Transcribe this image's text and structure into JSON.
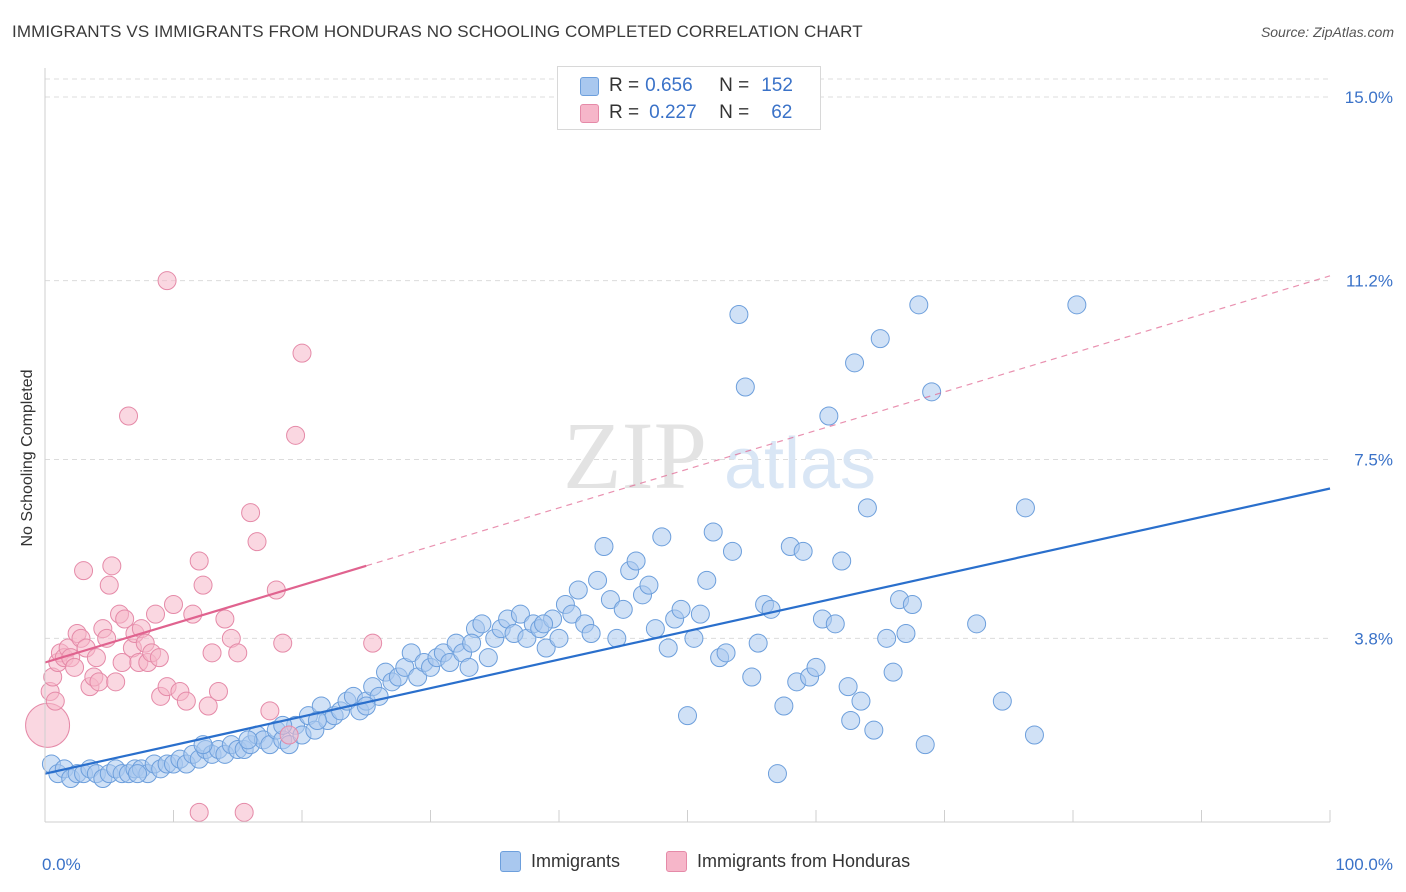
{
  "title": "IMMIGRANTS VS IMMIGRANTS FROM HONDURAS NO SCHOOLING COMPLETED CORRELATION CHART",
  "source": "Source: ZipAtlas.com",
  "watermark": {
    "zip": "ZIP",
    "atlas": "atlas"
  },
  "colors": {
    "blue_fill": "#a9c8ef",
    "blue_stroke": "#6d9fdc",
    "blue_line": "#2a6fcc",
    "pink_fill": "#f6b6c9",
    "pink_stroke": "#e58aa8",
    "pink_line": "#e0638f",
    "axis_text": "#3a72c8",
    "grid": "#dcdcdc"
  },
  "legend_top": {
    "rows": [
      {
        "r_label": "R =",
        "r_value": "0.656",
        "n_label": "N =",
        "n_value": "152",
        "color": "blue"
      },
      {
        "r_label": "R =",
        "r_value": "0.227",
        "n_label": "N =",
        "n_value": "62",
        "color": "pink"
      }
    ]
  },
  "legend_bottom": [
    {
      "label": "Immigrants",
      "color": "blue"
    },
    {
      "label": "Immigrants from Honduras",
      "color": "pink"
    }
  ],
  "chart_data": {
    "type": "scatter",
    "xlabel": "",
    "ylabel": "No Schooling Completed",
    "xlim": [
      0,
      100
    ],
    "ylim": [
      0,
      15.5
    ],
    "x_tick_labels": [
      {
        "value": 0,
        "label": "0.0%"
      },
      {
        "value": 100,
        "label": "100.0%"
      }
    ],
    "y_ticks": [
      {
        "value": 3.8,
        "label": "3.8%"
      },
      {
        "value": 7.5,
        "label": "7.5%"
      },
      {
        "value": 11.2,
        "label": "11.2%"
      },
      {
        "value": 15.0,
        "label": "15.0%"
      }
    ],
    "x_minor_ticks": [
      0,
      10,
      20,
      30,
      40,
      50,
      60,
      70,
      80,
      90,
      100
    ],
    "grid": true,
    "legend_position": "top-center",
    "series": [
      {
        "name": "Immigrants",
        "color": "blue",
        "r": 0.656,
        "n": 152,
        "trend": {
          "x": [
            0,
            100
          ],
          "y": [
            1.0,
            6.9
          ],
          "style": "solid"
        },
        "points": [
          [
            0.5,
            1.2
          ],
          [
            1,
            1.0
          ],
          [
            1.5,
            1.1
          ],
          [
            2,
            0.9
          ],
          [
            2.5,
            1.0
          ],
          [
            3,
            1.0
          ],
          [
            3.5,
            1.1
          ],
          [
            4,
            1.0
          ],
          [
            4.5,
            0.9
          ],
          [
            5,
            1.0
          ],
          [
            5.5,
            1.1
          ],
          [
            6,
            1.0
          ],
          [
            6.5,
            1.0
          ],
          [
            7,
            1.1
          ],
          [
            7.5,
            1.1
          ],
          [
            8,
            1.0
          ],
          [
            8.5,
            1.2
          ],
          [
            9,
            1.1
          ],
          [
            9.5,
            1.2
          ],
          [
            10,
            1.2
          ],
          [
            10.5,
            1.3
          ],
          [
            11,
            1.2
          ],
          [
            11.5,
            1.4
          ],
          [
            12,
            1.3
          ],
          [
            12.5,
            1.5
          ],
          [
            13,
            1.4
          ],
          [
            13.5,
            1.5
          ],
          [
            14,
            1.4
          ],
          [
            14.5,
            1.6
          ],
          [
            15,
            1.5
          ],
          [
            15.5,
            1.5
          ],
          [
            16,
            1.6
          ],
          [
            16.5,
            1.8
          ],
          [
            17,
            1.7
          ],
          [
            17.5,
            1.6
          ],
          [
            18,
            1.9
          ],
          [
            18.5,
            1.7
          ],
          [
            19,
            1.6
          ],
          [
            19.5,
            2.0
          ],
          [
            20,
            1.8
          ],
          [
            20.5,
            2.2
          ],
          [
            21,
            1.9
          ],
          [
            21.5,
            2.4
          ],
          [
            22,
            2.1
          ],
          [
            22.5,
            2.2
          ],
          [
            23,
            2.3
          ],
          [
            23.5,
            2.5
          ],
          [
            24,
            2.6
          ],
          [
            24.5,
            2.3
          ],
          [
            25,
            2.5
          ],
          [
            25.5,
            2.8
          ],
          [
            26,
            2.6
          ],
          [
            26.5,
            3.1
          ],
          [
            27,
            2.9
          ],
          [
            27.5,
            3.0
          ],
          [
            28,
            3.2
          ],
          [
            28.5,
            3.5
          ],
          [
            29,
            3.0
          ],
          [
            29.5,
            3.3
          ],
          [
            30,
            3.2
          ],
          [
            30.5,
            3.4
          ],
          [
            31,
            3.5
          ],
          [
            31.5,
            3.3
          ],
          [
            32,
            3.7
          ],
          [
            32.5,
            3.5
          ],
          [
            33,
            3.2
          ],
          [
            33.5,
            4.0
          ],
          [
            34,
            4.1
          ],
          [
            34.5,
            3.4
          ],
          [
            35,
            3.8
          ],
          [
            35.5,
            4.0
          ],
          [
            36,
            4.2
          ],
          [
            36.5,
            3.9
          ],
          [
            37,
            4.3
          ],
          [
            37.5,
            3.8
          ],
          [
            38,
            4.1
          ],
          [
            38.5,
            4.0
          ],
          [
            39,
            3.6
          ],
          [
            39.5,
            4.2
          ],
          [
            40,
            3.8
          ],
          [
            40.5,
            4.5
          ],
          [
            41,
            4.3
          ],
          [
            41.5,
            4.8
          ],
          [
            42,
            4.1
          ],
          [
            42.5,
            3.9
          ],
          [
            43,
            5.0
          ],
          [
            43.5,
            5.7
          ],
          [
            44,
            4.6
          ],
          [
            44.5,
            3.8
          ],
          [
            45,
            4.4
          ],
          [
            45.5,
            5.2
          ],
          [
            46,
            5.4
          ],
          [
            46.5,
            4.7
          ],
          [
            47,
            4.9
          ],
          [
            47.5,
            4.0
          ],
          [
            48,
            5.9
          ],
          [
            48.5,
            3.6
          ],
          [
            49,
            4.2
          ],
          [
            49.5,
            4.4
          ],
          [
            50,
            2.2
          ],
          [
            50.5,
            3.8
          ],
          [
            51,
            4.3
          ],
          [
            51.5,
            5.0
          ],
          [
            52,
            6.0
          ],
          [
            52.5,
            3.4
          ],
          [
            53,
            3.5
          ],
          [
            53.5,
            5.6
          ],
          [
            54,
            10.5
          ],
          [
            54.5,
            9.0
          ],
          [
            55,
            3.0
          ],
          [
            55.5,
            3.7
          ],
          [
            56,
            4.5
          ],
          [
            56.5,
            4.4
          ],
          [
            57,
            1.0
          ],
          [
            57.5,
            2.4
          ],
          [
            58,
            5.7
          ],
          [
            58.5,
            2.9
          ],
          [
            59,
            5.6
          ],
          [
            59.5,
            3.0
          ],
          [
            60,
            3.2
          ],
          [
            60.5,
            4.2
          ],
          [
            61,
            8.4
          ],
          [
            61.5,
            4.1
          ],
          [
            62,
            5.4
          ],
          [
            62.5,
            2.8
          ],
          [
            63,
            9.5
          ],
          [
            63.5,
            2.5
          ],
          [
            64,
            6.5
          ],
          [
            64.5,
            1.9
          ],
          [
            65,
            10.0
          ],
          [
            65.5,
            3.8
          ],
          [
            66,
            3.1
          ],
          [
            66.5,
            4.6
          ],
          [
            67,
            3.9
          ],
          [
            67.5,
            4.5
          ],
          [
            68,
            10.7
          ],
          [
            68.5,
            1.6
          ],
          [
            69,
            8.9
          ],
          [
            76.3,
            6.5
          ],
          [
            80.3,
            10.7
          ],
          [
            74.5,
            2.5
          ],
          [
            72.5,
            4.1
          ],
          [
            77,
            1.8
          ],
          [
            62.7,
            2.1
          ],
          [
            38.8,
            4.1
          ],
          [
            33.2,
            3.7
          ],
          [
            25,
            2.4
          ],
          [
            21.2,
            2.1
          ],
          [
            18.5,
            2.0
          ],
          [
            15.8,
            1.7
          ],
          [
            12.3,
            1.6
          ],
          [
            7.2,
            1.0
          ]
        ]
      },
      {
        "name": "Immigrants from Honduras",
        "color": "pink",
        "r": 0.227,
        "n": 62,
        "trend": {
          "x": [
            0,
            25
          ],
          "y": [
            3.3,
            5.3
          ],
          "style": "solid",
          "extension": {
            "x": [
              25,
              100
            ],
            "y": [
              5.3,
              11.3
            ],
            "style": "dashed"
          }
        },
        "points": [
          [
            0.2,
            2.0
          ],
          [
            0.4,
            2.7
          ],
          [
            0.6,
            3.0
          ],
          [
            0.8,
            2.5
          ],
          [
            1,
            3.3
          ],
          [
            1.2,
            3.5
          ],
          [
            1.5,
            3.4
          ],
          [
            1.8,
            3.6
          ],
          [
            2,
            3.4
          ],
          [
            2.3,
            3.2
          ],
          [
            2.5,
            3.9
          ],
          [
            2.8,
            3.8
          ],
          [
            3,
            5.2
          ],
          [
            3.2,
            3.6
          ],
          [
            3.5,
            2.8
          ],
          [
            3.8,
            3.0
          ],
          [
            4,
            3.4
          ],
          [
            4.2,
            2.9
          ],
          [
            4.5,
            4.0
          ],
          [
            4.8,
            3.8
          ],
          [
            5,
            4.9
          ],
          [
            5.2,
            5.3
          ],
          [
            5.5,
            2.9
          ],
          [
            5.8,
            4.3
          ],
          [
            6,
            3.3
          ],
          [
            6.2,
            4.2
          ],
          [
            6.5,
            8.4
          ],
          [
            6.8,
            3.6
          ],
          [
            7,
            3.9
          ],
          [
            7.3,
            3.3
          ],
          [
            7.5,
            4.0
          ],
          [
            7.8,
            3.7
          ],
          [
            8,
            3.3
          ],
          [
            8.3,
            3.5
          ],
          [
            8.6,
            4.3
          ],
          [
            8.9,
            3.4
          ],
          [
            9,
            2.6
          ],
          [
            9.5,
            2.8
          ],
          [
            10,
            4.5
          ],
          [
            10.5,
            2.7
          ],
          [
            11,
            2.5
          ],
          [
            11.5,
            4.3
          ],
          [
            12,
            5.4
          ],
          [
            12.3,
            4.9
          ],
          [
            12.7,
            2.4
          ],
          [
            13,
            3.5
          ],
          [
            13.5,
            2.7
          ],
          [
            14,
            4.2
          ],
          [
            14.5,
            3.8
          ],
          [
            15,
            3.5
          ],
          [
            12,
            0.2
          ],
          [
            9.5,
            11.2
          ],
          [
            15.5,
            0.2
          ],
          [
            16,
            6.4
          ],
          [
            16.5,
            5.8
          ],
          [
            17.5,
            2.3
          ],
          [
            18,
            4.8
          ],
          [
            18.5,
            3.7
          ],
          [
            19,
            1.8
          ],
          [
            19.5,
            8.0
          ],
          [
            20,
            9.7
          ],
          [
            25.5,
            3.7
          ]
        ]
      }
    ]
  }
}
